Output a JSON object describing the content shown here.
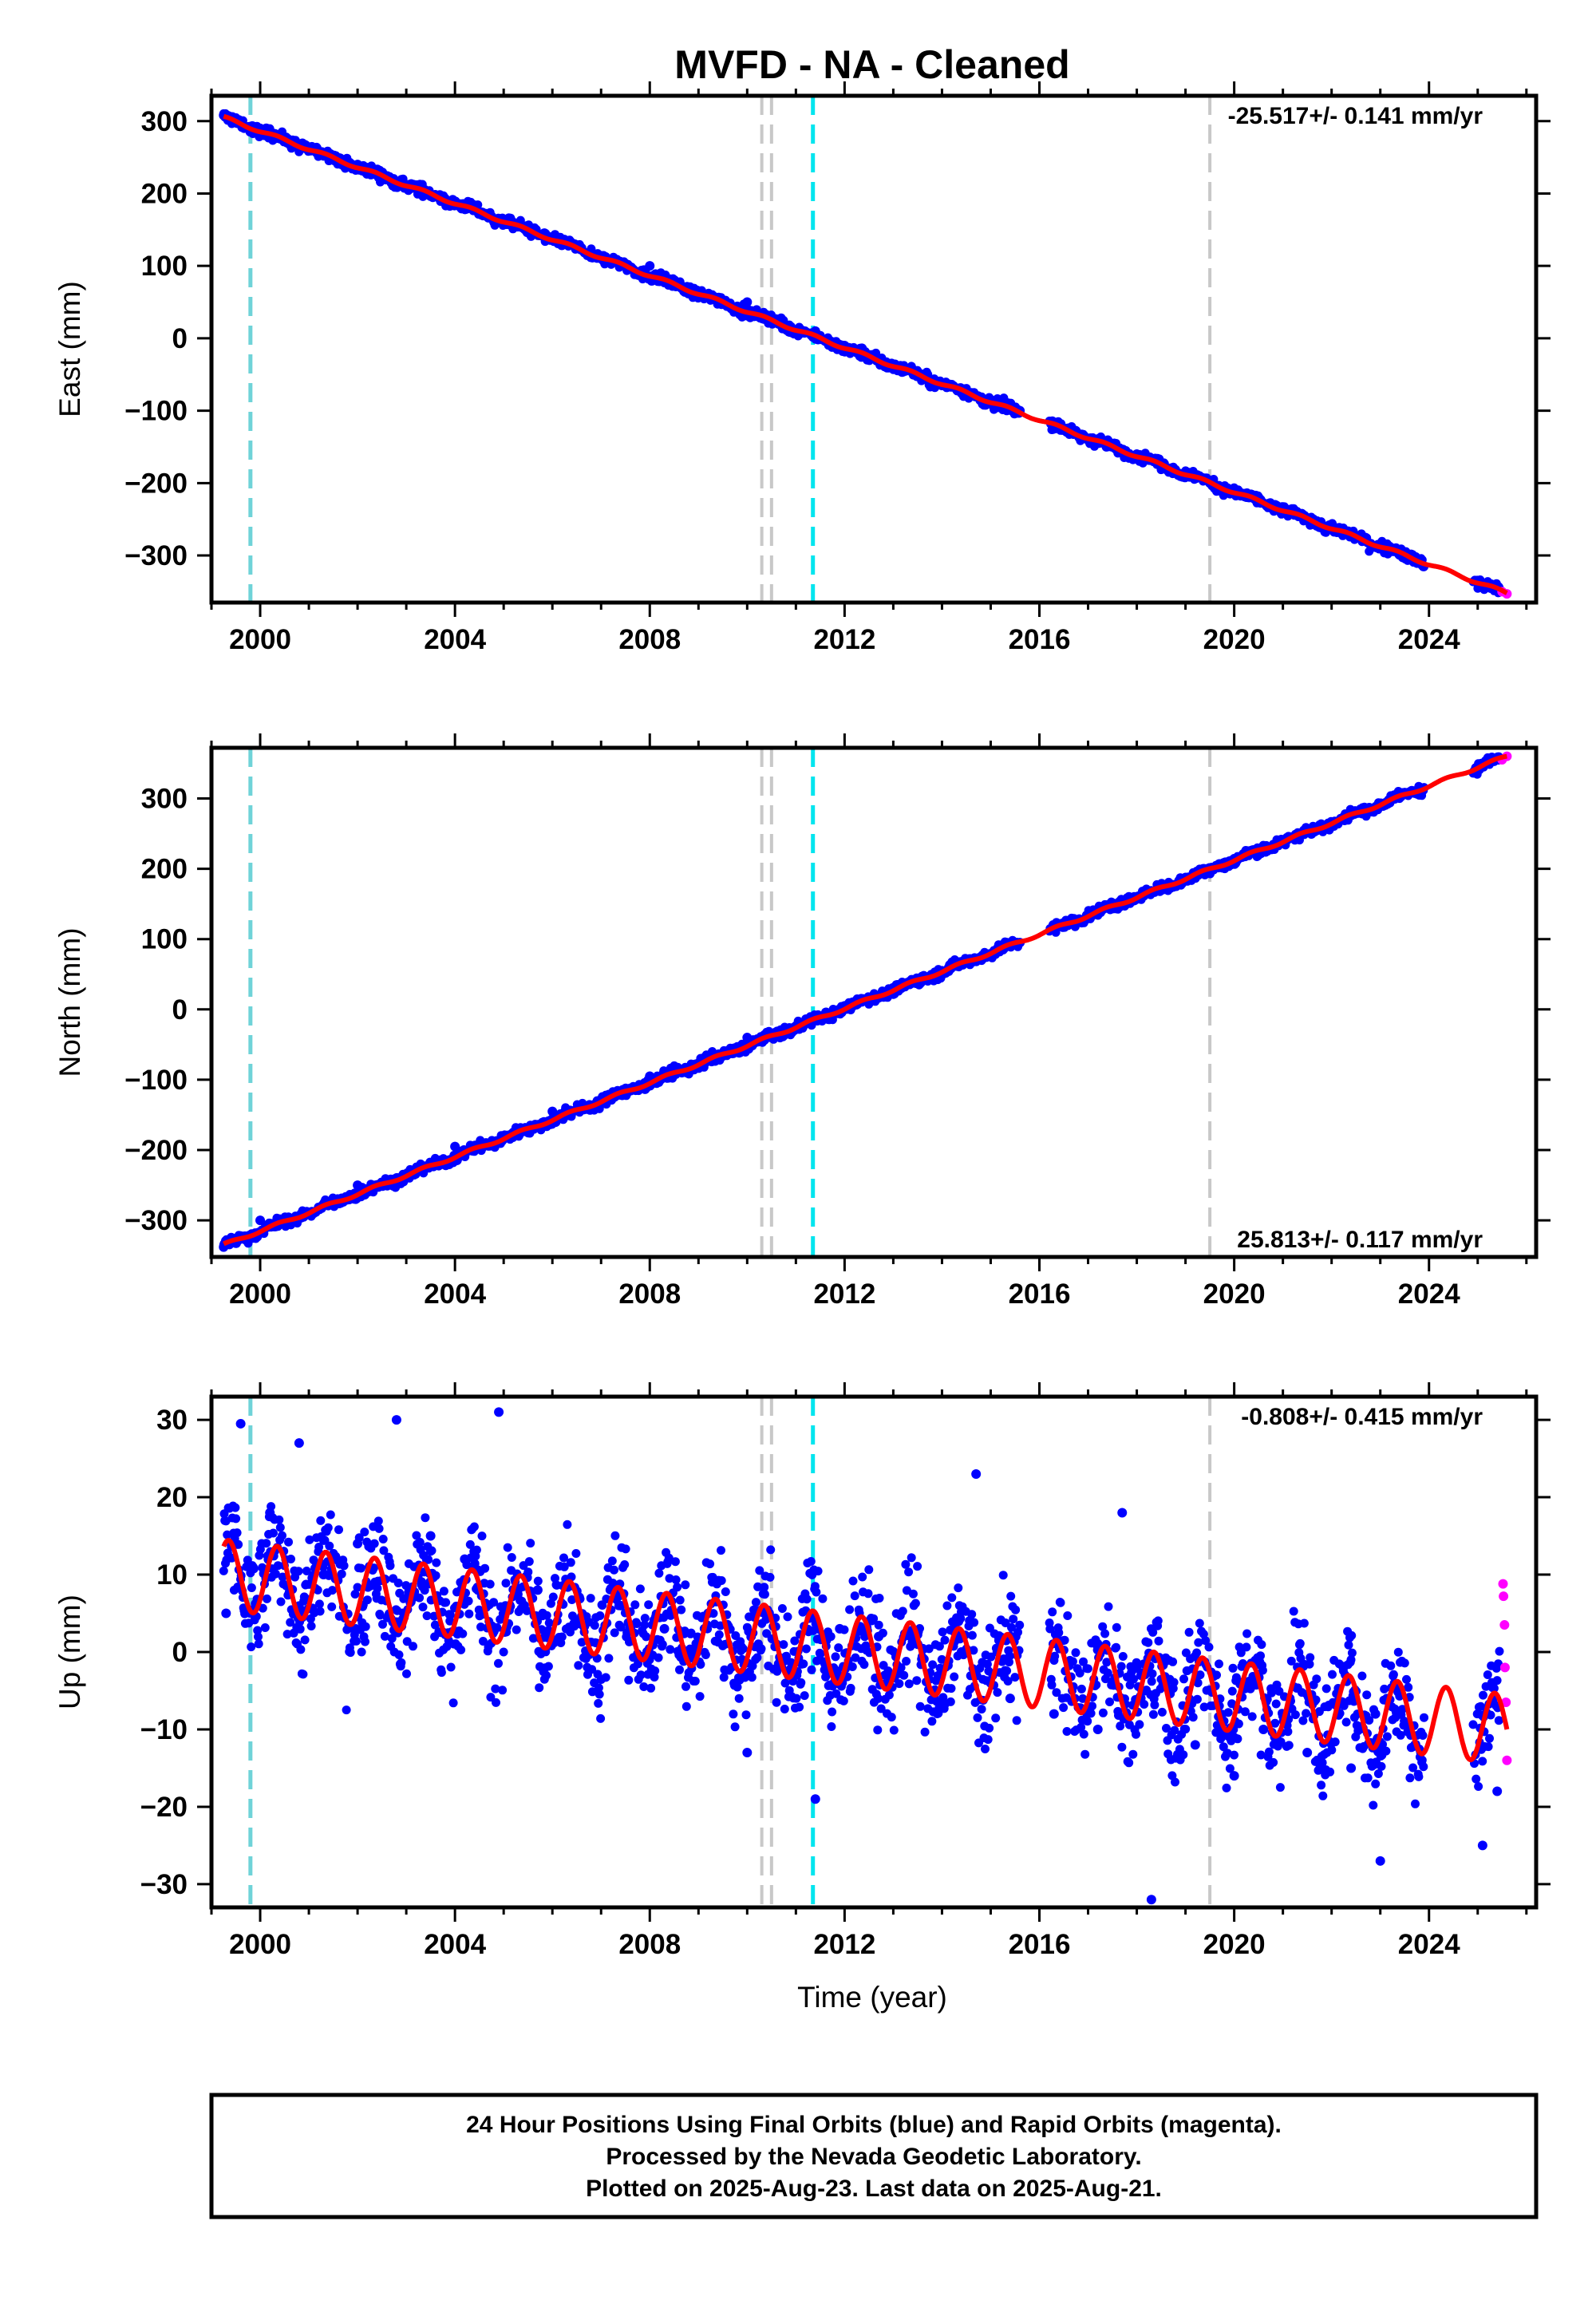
{
  "chart_data": [
    {
      "type": "scatter",
      "title": "MVFD  - NA - Cleaned",
      "ylabel": "East (mm)",
      "xlabel": "",
      "rate_label": "-25.517+/- 0.141 mm/yr",
      "xlim": [
        1999.0,
        2026.2
      ],
      "ylim": [
        -365,
        335
      ],
      "xticks": [
        2000,
        2004,
        2008,
        2012,
        2016,
        2020,
        2024
      ],
      "yticks": [
        300,
        200,
        100,
        0,
        -100,
        -200,
        -300
      ],
      "grid": false,
      "trend": {
        "start": 1999.25,
        "end": 2025.6,
        "y_start": 305,
        "y_end": -352,
        "seasonal_amplitude": 2
      },
      "series": [
        {
          "name": "Final Orbits",
          "color": "#0000ff",
          "x": [
            1999.25,
            2000,
            2002,
            2004,
            2006,
            2008,
            2010,
            2011.4,
            2012,
            2014,
            2015.6,
            2018,
            2020,
            2022,
            2023.8,
            2025.1
          ],
          "y": [
            308,
            290,
            240,
            185,
            140,
            100,
            50,
            10,
            -10,
            -65,
            -100,
            -160,
            -210,
            -262,
            -308,
            -338
          ]
        },
        {
          "name": "Rapid Orbits",
          "color": "#ff00ff",
          "x": [
            2025.5,
            2025.6
          ],
          "y": [
            -350,
            -353
          ]
        },
        {
          "name": "Model",
          "color": "#ff0000",
          "x": [
            1999.25,
            2025.6
          ],
          "y": [
            305,
            -352
          ]
        }
      ],
      "event_lines": [
        {
          "x": 1999.8,
          "color": "#6fd3d8",
          "style": "dashed"
        },
        {
          "x": 2010.3,
          "color": "#c8c8c8",
          "style": "dashed"
        },
        {
          "x": 2010.5,
          "color": "#c8c8c8",
          "style": "dashed"
        },
        {
          "x": 2011.35,
          "color": "#00e5ee",
          "style": "dashed"
        },
        {
          "x": 2019.5,
          "color": "#c8c8c8",
          "style": "dashed"
        }
      ]
    },
    {
      "type": "scatter",
      "title": "",
      "ylabel": "North (mm)",
      "xlabel": "",
      "rate_label": "25.813+/- 0.117 mm/yr",
      "xlim": [
        1999.0,
        2026.2
      ],
      "ylim": [
        -352,
        372
      ],
      "xticks": [
        2000,
        2004,
        2008,
        2012,
        2016,
        2020,
        2024
      ],
      "yticks": [
        300,
        200,
        100,
        0,
        -100,
        -200,
        -300
      ],
      "grid": false,
      "trend": {
        "start": 1999.25,
        "end": 2025.6,
        "y_start": -335,
        "y_end": 360,
        "seasonal_amplitude": 2
      },
      "series": [
        {
          "name": "Final Orbits",
          "color": "#0000ff",
          "x": [
            1999.25,
            2000,
            2002,
            2004,
            2006,
            2008,
            2010,
            2011.4,
            2012,
            2014,
            2015.6,
            2018,
            2020,
            2022,
            2023.8,
            2025.1
          ],
          "y": [
            -338,
            -300,
            -250,
            -195,
            -145,
            -95,
            -40,
            -10,
            5,
            55,
            95,
            160,
            210,
            260,
            305,
            345
          ]
        },
        {
          "name": "Rapid Orbits",
          "color": "#ff00ff",
          "x": [
            2025.5,
            2025.6
          ],
          "y": [
            355,
            360
          ]
        },
        {
          "name": "Model",
          "color": "#ff0000",
          "x": [
            1999.25,
            2025.6
          ],
          "y": [
            -335,
            360
          ]
        }
      ],
      "event_lines": [
        {
          "x": 1999.8,
          "color": "#6fd3d8",
          "style": "dashed"
        },
        {
          "x": 2010.3,
          "color": "#c8c8c8",
          "style": "dashed"
        },
        {
          "x": 2010.5,
          "color": "#c8c8c8",
          "style": "dashed"
        },
        {
          "x": 2011.35,
          "color": "#00e5ee",
          "style": "dashed"
        },
        {
          "x": 2019.5,
          "color": "#c8c8c8",
          "style": "dashed"
        }
      ]
    },
    {
      "type": "scatter",
      "title": "",
      "ylabel": "Up (mm)",
      "xlabel": "Time (year)",
      "rate_label": "-0.808+/- 0.415 mm/yr",
      "xlim": [
        1999.0,
        2026.2
      ],
      "ylim": [
        -33,
        33
      ],
      "xticks": [
        2000,
        2004,
        2008,
        2012,
        2016,
        2020,
        2024
      ],
      "yticks": [
        30,
        20,
        10,
        0,
        -10,
        -20,
        -30
      ],
      "grid": false,
      "trend": {
        "start": 1999.25,
        "end": 2025.6,
        "y_start": 10,
        "y_end": -10,
        "seasonal_amplitude": 4.5
      },
      "series": [
        {
          "name": "Final Orbits",
          "color": "#0000ff",
          "x": [
            1999.3,
            1999.6,
            2000.2,
            2000.8,
            2001.3,
            2002.0,
            2002.8,
            2003.5,
            2004.2,
            2004.9,
            2005.7,
            2006.5,
            2007.4,
            2008.3,
            2009.2,
            2010.0,
            2010.6,
            2011.4,
            2011.9,
            2012.7,
            2013.5,
            2014.4,
            2014.7,
            2015.4,
            2016.3,
            2017.2,
            2017.7,
            2018.3,
            2019.2,
            2020.0,
            2020.6,
            2021.5,
            2022.4,
            2022.9,
            2023.0,
            2025.1,
            2025.4
          ],
          "y": [
            5,
            29.5,
            18,
            27,
            10,
            14,
            30,
            15,
            12,
            31,
            8,
            4,
            6,
            3,
            5,
            -13,
            1,
            -19,
            3,
            2,
            1,
            0,
            23,
            -6,
            -8,
            -10,
            18,
            -32,
            -12,
            -16,
            -10,
            -13,
            -15,
            -8,
            -27,
            -25,
            -18
          ]
        },
        {
          "name": "Rapid Orbits",
          "color": "#ff00ff",
          "x": [
            2025.52,
            2025.53,
            2025.55,
            2025.56,
            2025.58,
            2025.6
          ],
          "y": [
            8.8,
            7.2,
            3.5,
            -2.0,
            -6.5,
            -14.0
          ]
        },
        {
          "name": "Model",
          "color": "#ff0000",
          "x": [
            1999.25,
            2025.6
          ],
          "y": [
            10,
            -10
          ]
        }
      ],
      "event_lines": [
        {
          "x": 1999.8,
          "color": "#6fd3d8",
          "style": "dashed"
        },
        {
          "x": 2010.3,
          "color": "#c8c8c8",
          "style": "dashed"
        },
        {
          "x": 2010.5,
          "color": "#c8c8c8",
          "style": "dashed"
        },
        {
          "x": 2011.35,
          "color": "#00e5ee",
          "style": "dashed"
        },
        {
          "x": 2019.5,
          "color": "#c8c8c8",
          "style": "dashed"
        }
      ]
    }
  ],
  "footer": {
    "line1": "24 Hour Positions Using Final Orbits (blue) and Rapid Orbits (magenta).",
    "line2": "Processed by the Nevada Geodetic Laboratory.",
    "line3": "Plotted on 2025-Aug-23. Last data on 2025-Aug-21."
  }
}
